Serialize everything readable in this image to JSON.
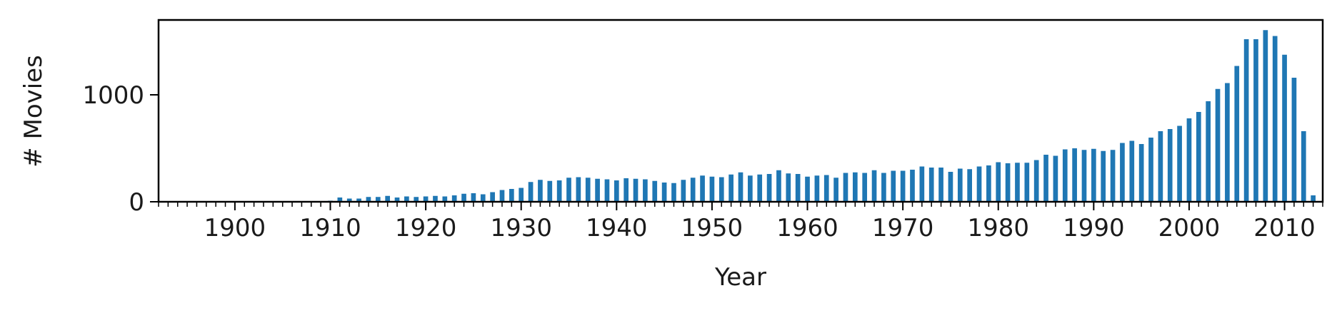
{
  "chart_data": {
    "type": "bar",
    "title": "",
    "xlabel": "Year",
    "ylabel": "# Movies",
    "x_major_ticks": [
      1900,
      1910,
      1920,
      1930,
      1940,
      1950,
      1960,
      1970,
      1980,
      1990,
      2000,
      2010
    ],
    "y_ticks": [
      0,
      1000
    ],
    "xlim": [
      1892,
      2014
    ],
    "ylim": [
      0,
      1700
    ],
    "grid": false,
    "legend": "none",
    "bar_color": "#1f77b4",
    "x": [
      1893,
      1894,
      1895,
      1896,
      1897,
      1898,
      1899,
      1900,
      1901,
      1902,
      1903,
      1904,
      1905,
      1906,
      1907,
      1908,
      1909,
      1910,
      1911,
      1912,
      1913,
      1914,
      1915,
      1916,
      1917,
      1918,
      1919,
      1920,
      1921,
      1922,
      1923,
      1924,
      1925,
      1926,
      1927,
      1928,
      1929,
      1930,
      1931,
      1932,
      1933,
      1934,
      1935,
      1936,
      1937,
      1938,
      1939,
      1940,
      1941,
      1942,
      1943,
      1944,
      1945,
      1946,
      1947,
      1948,
      1949,
      1950,
      1951,
      1952,
      1953,
      1954,
      1955,
      1956,
      1957,
      1958,
      1959,
      1960,
      1961,
      1962,
      1963,
      1964,
      1965,
      1966,
      1967,
      1968,
      1969,
      1970,
      1971,
      1972,
      1973,
      1974,
      1975,
      1976,
      1977,
      1978,
      1979,
      1980,
      1981,
      1982,
      1983,
      1984,
      1985,
      1986,
      1987,
      1988,
      1989,
      1990,
      1991,
      1992,
      1993,
      1994,
      1995,
      1996,
      1997,
      1998,
      1999,
      2000,
      2001,
      2002,
      2003,
      2004,
      2005,
      2006,
      2007,
      2008,
      2009,
      2010,
      2011,
      2012,
      2013
    ],
    "values": [
      1,
      1,
      1,
      1,
      1,
      1,
      2,
      3,
      2,
      2,
      3,
      2,
      2,
      2,
      3,
      4,
      5,
      10,
      40,
      30,
      30,
      45,
      45,
      55,
      40,
      50,
      45,
      50,
      55,
      50,
      60,
      75,
      80,
      70,
      90,
      110,
      120,
      130,
      185,
      205,
      195,
      200,
      225,
      230,
      225,
      215,
      210,
      200,
      220,
      215,
      210,
      195,
      180,
      175,
      205,
      225,
      245,
      235,
      230,
      255,
      275,
      245,
      255,
      260,
      295,
      265,
      260,
      235,
      245,
      250,
      225,
      270,
      275,
      270,
      295,
      270,
      290,
      290,
      300,
      330,
      320,
      320,
      280,
      310,
      305,
      330,
      340,
      370,
      360,
      365,
      365,
      390,
      440,
      430,
      490,
      500,
      485,
      495,
      475,
      485,
      550,
      570,
      540,
      600,
      660,
      680,
      710,
      780,
      840,
      940,
      1055,
      1110,
      1270,
      1520,
      1520,
      1605,
      1550,
      1375,
      1160,
      660,
      60
    ]
  }
}
